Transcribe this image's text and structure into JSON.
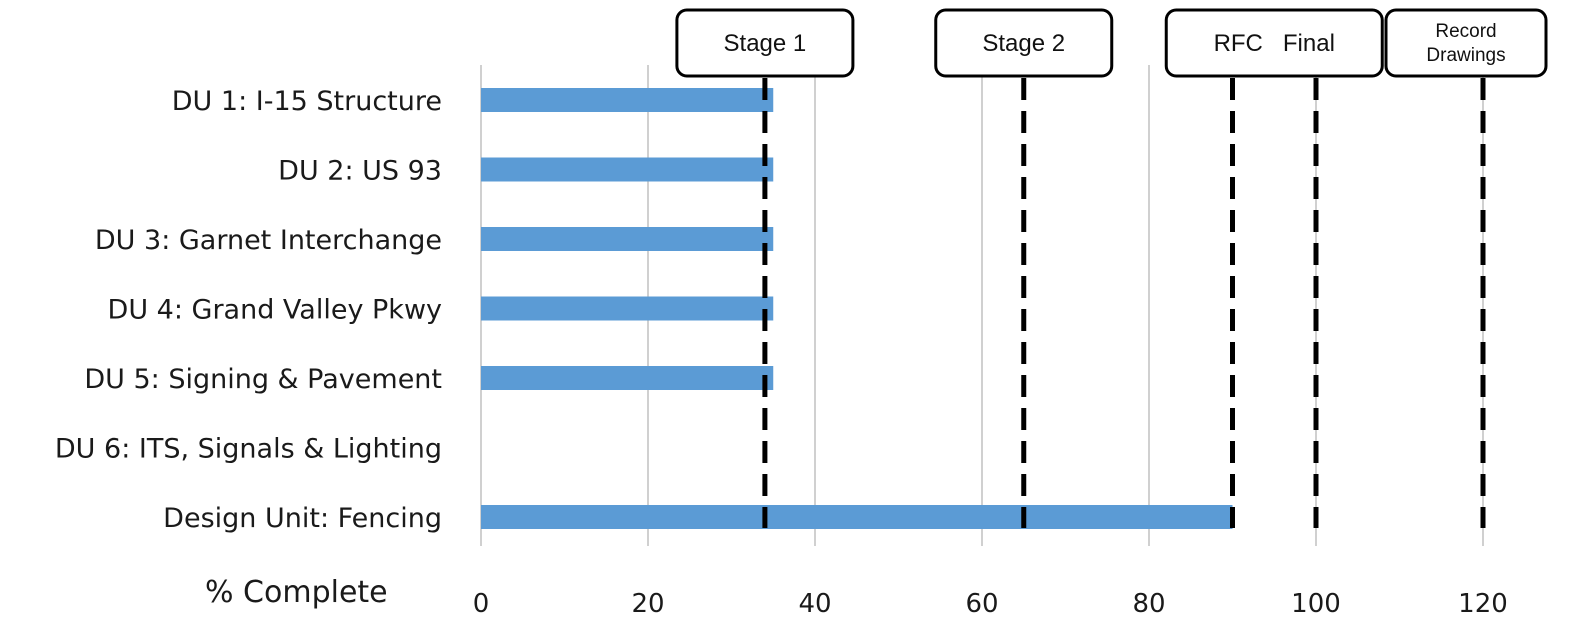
{
  "chart_data": {
    "type": "bar",
    "orientation": "horizontal",
    "categories": [
      "DU 1: I-15 Structure",
      "DU 2: US 93",
      "DU 3: Garnet Interchange",
      "DU 4: Grand Valley Pkwy",
      "DU 5: Signing & Pavement",
      "DU 6: ITS, Signals & Lighting",
      "Design Unit: Fencing"
    ],
    "values": [
      35,
      35,
      35,
      35,
      35,
      0,
      90
    ],
    "xlabel": "% Complete",
    "xlim": [
      0,
      130
    ],
    "xticks": [
      0,
      20,
      40,
      60,
      80,
      100,
      120
    ],
    "grid": "vertical",
    "bar_color": "#5b9bd5",
    "milestones": [
      {
        "label": "Stage 1",
        "lines": [
          34
        ],
        "x": 34
      },
      {
        "label": "Stage 2",
        "lines": [
          65
        ],
        "x": 65
      },
      {
        "label": "RFC   Final",
        "lines": [
          90,
          100
        ],
        "x": 90
      },
      {
        "label": "Record Drawings",
        "label_lines": [
          "Record",
          "Drawings"
        ],
        "lines": [
          120
        ],
        "x": 120
      }
    ]
  }
}
